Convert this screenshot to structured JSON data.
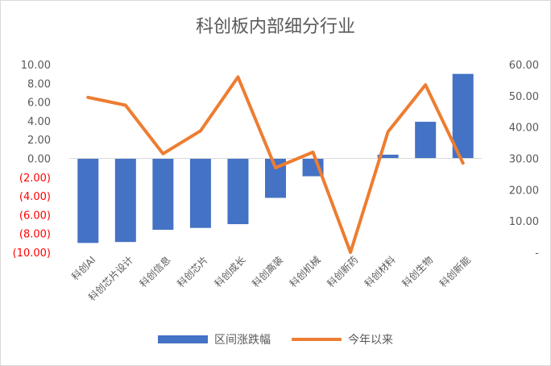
{
  "chart_data": {
    "type": "bar",
    "title": "科创板内部细分行业",
    "categories": [
      "科创AI",
      "科创芯片设计",
      "科创信息",
      "科创芯片",
      "科创成长",
      "科创高装",
      "科创机械",
      "科创新药",
      "科创材料",
      "科创生物",
      "科创新能"
    ],
    "series": [
      {
        "name": "区间涨跌幅",
        "type": "bar",
        "axis": "left",
        "color": "#4472c4",
        "values": [
          -9.0,
          -8.9,
          -7.6,
          -7.4,
          -7.0,
          -4.2,
          -1.9,
          0.0,
          0.4,
          3.9,
          9.0
        ]
      },
      {
        "name": "今年以来",
        "type": "line",
        "axis": "right",
        "color": "#ed7d31",
        "values": [
          49.5,
          47.0,
          31.5,
          38.8,
          56.0,
          27.0,
          32.0,
          0.0,
          38.5,
          53.5,
          28.5
        ]
      }
    ],
    "left_axis": {
      "min": -10,
      "max": 10,
      "step": 2,
      "tick_labels": [
        "10.00",
        "8.00",
        "6.00",
        "4.00",
        "2.00",
        "0.00",
        "(2.00)",
        "(4.00)",
        "(6.00)",
        "(8.00)",
        "(10.00)"
      ],
      "positive_color": "#595959",
      "negative_color": "#ff0000"
    },
    "right_axis": {
      "min": 0,
      "max": 60,
      "step": 10,
      "tick_labels": [
        "60.00",
        "50.00",
        "40.00",
        "30.00",
        "20.00",
        "10.00",
        "-"
      ]
    },
    "grid": false,
    "legend_position": "bottom"
  }
}
